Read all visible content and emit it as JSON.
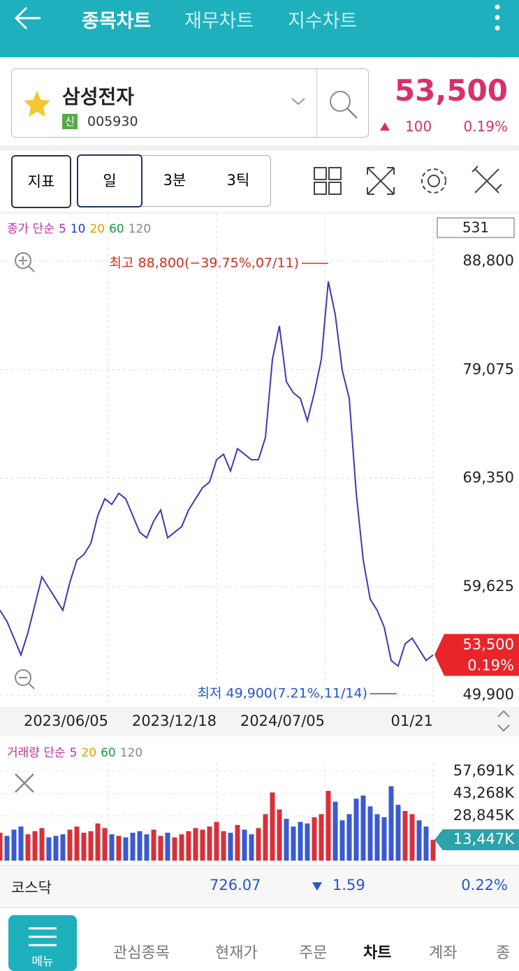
{
  "header": {
    "tabs": [
      "종목차트",
      "재무차트",
      "지수차트"
    ]
  },
  "stock": {
    "name": "삼성전자",
    "badge": "신",
    "code": "005930",
    "price": "53,500",
    "change": "100",
    "change_pct": "0.19%"
  },
  "toolbar": {
    "indicator": "지표",
    "periods": [
      "일",
      "3분",
      "3틱"
    ]
  },
  "chart_data": [
    {
      "type": "line",
      "legend": [
        "종가 단순",
        "5",
        "10",
        "20",
        "60",
        "120"
      ],
      "legend_colors": [
        "#c0309a",
        "#c0309a",
        "#2a3ab0",
        "#e0a000",
        "#1a9a3a",
        "#888888"
      ],
      "count": "531",
      "series": [
        {
          "color": "#3a3ab0",
          "values": [
            57500,
            56500,
            55000,
            53500,
            55500,
            58000,
            60500,
            59500,
            58500,
            57500,
            60000,
            62000,
            62500,
            63500,
            66000,
            67500,
            67000,
            68000,
            67500,
            66000,
            64500,
            64000,
            65500,
            66500,
            64000,
            64500,
            65000,
            66500,
            67500,
            68500,
            69000,
            71000,
            71500,
            70000,
            72000,
            71500,
            71000,
            71000,
            73000,
            80000,
            83000,
            78000,
            77000,
            76500,
            74500,
            77000,
            80000,
            87000,
            84000,
            79000,
            76500,
            68000,
            62000,
            58500,
            57500,
            56000,
            53000,
            52500,
            54500,
            55000,
            54000,
            53000,
            53500
          ]
        }
      ],
      "xlim": [
        0,
        62
      ],
      "xticks": [
        {
          "value": 15.5,
          "label": "2023/06/05"
        },
        {
          "value": 31,
          "label": "2023/12/18"
        },
        {
          "value": 46.5,
          "label": "2024/07/05"
        },
        {
          "value": 62,
          "label": "01/21"
        }
      ],
      "ylim": [
        49900,
        88800
      ],
      "yticks": [
        {
          "value": 88800,
          "label": "88,800"
        },
        {
          "value": 79075,
          "label": "79,075"
        },
        {
          "value": 69350,
          "label": "69,350"
        },
        {
          "value": 59625,
          "label": "59,625"
        },
        {
          "value": 49900,
          "label": "49,900"
        }
      ],
      "current": {
        "value": 53500,
        "label": "53,500",
        "change": "0.19%"
      },
      "high": {
        "value": 88800,
        "label": "최고 88,800(−39.75%,07/11)"
      },
      "low": {
        "value": 49900,
        "label": "최저 49,900(7.21%,11/14)"
      }
    },
    {
      "type": "bar",
      "legend": [
        "거래량 단순",
        "5",
        "20",
        "60",
        "120"
      ],
      "legend_colors": [
        "#c0309a",
        "#c0309a",
        "#e0a000",
        "#1a9a3a",
        "#888888"
      ],
      "series": [
        {
          "values": [
            18000,
            16000,
            20000,
            22000,
            17000,
            19000,
            21000,
            15000,
            16000,
            17000,
            20000,
            22000,
            18000,
            19000,
            24000,
            21000,
            17000,
            16000,
            15000,
            18000,
            19000,
            17000,
            20000,
            16000,
            18000,
            15000,
            17000,
            19000,
            21000,
            20000,
            22000,
            25000,
            19000,
            18000,
            23000,
            20000,
            17000,
            21000,
            30000,
            44000,
            33000,
            27000,
            22000,
            25000,
            24000,
            28000,
            30000,
            45000,
            38000,
            26000,
            30000,
            40000,
            42000,
            35000,
            30000,
            28000,
            48000,
            36000,
            32000,
            30000,
            26000,
            22000,
            13447
          ]
        }
      ],
      "ylim": [
        0,
        57691
      ],
      "yticks": [
        {
          "value": 57691,
          "label": "57,691K"
        },
        {
          "value": 43268,
          "label": "43,268K"
        },
        {
          "value": 28845,
          "label": "28,845K"
        }
      ],
      "current": {
        "value": 13447,
        "label": "13,447K"
      }
    }
  ],
  "market": {
    "name": "코스닥",
    "value": "726.07",
    "change": "1.59",
    "pct": "0.22%"
  },
  "nav": {
    "menu": "메뉴",
    "items": [
      "관심종목",
      "현재가",
      "주문",
      "차트",
      "계좌",
      "종"
    ]
  }
}
